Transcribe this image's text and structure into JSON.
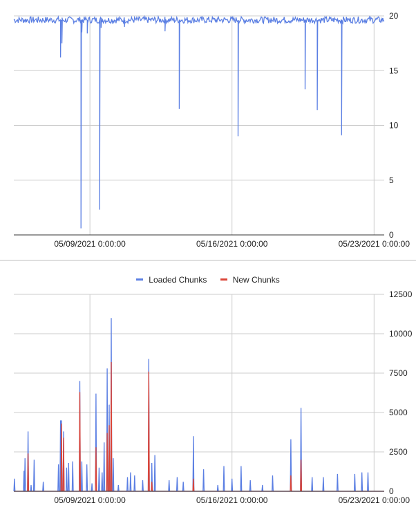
{
  "chart_data": [
    {
      "type": "line",
      "title": "",
      "xlabel": "",
      "ylabel": "",
      "ylim": [
        0,
        20
      ],
      "yticks": [
        0,
        5,
        10,
        15,
        20
      ],
      "y_axis_side": "right",
      "x_range": [
        "05/05/2021 6:00",
        "05/23/2021 12:00"
      ],
      "x_tick_labels": [
        "05/09/2021 0:00:00",
        "05/16/2021 0:00:00",
        "05/23/2021 0:00:00"
      ],
      "grid": true,
      "series": [
        {
          "name": "",
          "color": "#5b7fe3",
          "baseline": 19.6,
          "dips": [
            {
              "day": 7.55,
              "value": 16.2
            },
            {
              "day": 7.62,
              "value": 17.5
            },
            {
              "day": 8.56,
              "value": 0.6
            },
            {
              "day": 8.6,
              "value": 18.5
            },
            {
              "day": 8.87,
              "value": 18.4
            },
            {
              "day": 9.48,
              "value": 2.3
            },
            {
              "day": 9.55,
              "value": 18.9
            },
            {
              "day": 10.7,
              "value": 19.0
            },
            {
              "day": 12.7,
              "value": 18.6
            },
            {
              "day": 13.4,
              "value": 11.5
            },
            {
              "day": 16.3,
              "value": 9.0
            },
            {
              "day": 19.6,
              "value": 13.3
            },
            {
              "day": 20.2,
              "value": 11.4
            },
            {
              "day": 21.4,
              "value": 9.1
            }
          ]
        }
      ]
    },
    {
      "type": "line",
      "title": "",
      "xlabel": "",
      "ylabel": "",
      "ylim": [
        0,
        12500
      ],
      "yticks": [
        0,
        2500,
        5000,
        7500,
        10000,
        12500
      ],
      "y_axis_side": "right",
      "x_range": [
        "05/05/2021 6:00",
        "05/23/2021 12:00"
      ],
      "x_tick_labels": [
        "05/09/2021 0:00:00",
        "05/16/2021 0:00:00",
        "05/23/2021 0:00:00"
      ],
      "legend": "top",
      "grid": true,
      "series": [
        {
          "name": "Loaded Chunks",
          "color": "#5b7fe3",
          "spikes": [
            {
              "day": 5.28,
              "value": 800
            },
            {
              "day": 5.75,
              "value": 1300
            },
            {
              "day": 5.8,
              "value": 2100
            },
            {
              "day": 5.95,
              "value": 3800
            },
            {
              "day": 6.1,
              "value": 400
            },
            {
              "day": 6.25,
              "value": 2000
            },
            {
              "day": 6.7,
              "value": 600
            },
            {
              "day": 7.45,
              "value": 1700
            },
            {
              "day": 7.55,
              "value": 4500
            },
            {
              "day": 7.6,
              "value": 4500
            },
            {
              "day": 7.7,
              "value": 3800
            },
            {
              "day": 7.85,
              "value": 1500
            },
            {
              "day": 7.95,
              "value": 1800
            },
            {
              "day": 8.15,
              "value": 1900
            },
            {
              "day": 8.5,
              "value": 7000
            },
            {
              "day": 8.6,
              "value": 1900
            },
            {
              "day": 8.85,
              "value": 1700
            },
            {
              "day": 9.1,
              "value": 500
            },
            {
              "day": 9.3,
              "value": 6200
            },
            {
              "day": 9.45,
              "value": 1500
            },
            {
              "day": 9.6,
              "value": 1200
            },
            {
              "day": 9.7,
              "value": 3100
            },
            {
              "day": 9.85,
              "value": 7800
            },
            {
              "day": 9.95,
              "value": 5500
            },
            {
              "day": 10.05,
              "value": 11000
            },
            {
              "day": 10.15,
              "value": 2100
            },
            {
              "day": 10.4,
              "value": 400
            },
            {
              "day": 10.85,
              "value": 900
            },
            {
              "day": 11.0,
              "value": 1200
            },
            {
              "day": 11.2,
              "value": 1000
            },
            {
              "day": 11.6,
              "value": 700
            },
            {
              "day": 11.9,
              "value": 8400
            },
            {
              "day": 12.05,
              "value": 1800
            },
            {
              "day": 12.2,
              "value": 2300
            },
            {
              "day": 12.9,
              "value": 700
            },
            {
              "day": 13.3,
              "value": 900
            },
            {
              "day": 13.6,
              "value": 600
            },
            {
              "day": 14.1,
              "value": 3500
            },
            {
              "day": 14.6,
              "value": 1400
            },
            {
              "day": 15.3,
              "value": 400
            },
            {
              "day": 15.6,
              "value": 1600
            },
            {
              "day": 16.0,
              "value": 800
            },
            {
              "day": 16.45,
              "value": 1600
            },
            {
              "day": 16.9,
              "value": 700
            },
            {
              "day": 17.5,
              "value": 400
            },
            {
              "day": 18.0,
              "value": 1000
            },
            {
              "day": 18.9,
              "value": 3300
            },
            {
              "day": 19.4,
              "value": 5300
            },
            {
              "day": 19.95,
              "value": 900
            },
            {
              "day": 20.5,
              "value": 900
            },
            {
              "day": 21.2,
              "value": 1100
            },
            {
              "day": 22.05,
              "value": 1100
            },
            {
              "day": 22.4,
              "value": 1200
            },
            {
              "day": 22.7,
              "value": 1200
            }
          ]
        },
        {
          "name": "New Chunks",
          "color": "#db4437",
          "spikes": [
            {
              "day": 5.95,
              "value": 2400
            },
            {
              "day": 7.6,
              "value": 4300
            },
            {
              "day": 7.7,
              "value": 3400
            },
            {
              "day": 8.5,
              "value": 6300
            },
            {
              "day": 9.3,
              "value": 2800
            },
            {
              "day": 9.85,
              "value": 3700
            },
            {
              "day": 9.95,
              "value": 4200
            },
            {
              "day": 10.05,
              "value": 8200
            },
            {
              "day": 11.9,
              "value": 7600
            },
            {
              "day": 12.05,
              "value": 600
            },
            {
              "day": 14.1,
              "value": 800
            },
            {
              "day": 18.9,
              "value": 1000
            },
            {
              "day": 19.4,
              "value": 2000
            }
          ]
        }
      ]
    }
  ]
}
